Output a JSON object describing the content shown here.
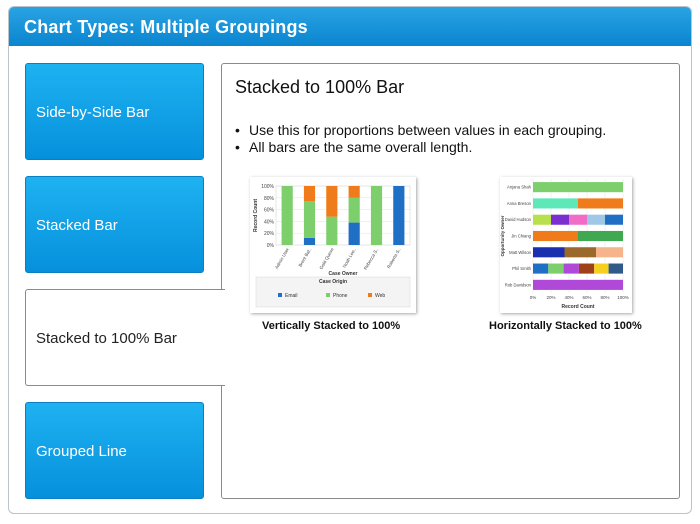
{
  "header": {
    "title": "Chart Types: Multiple Groupings"
  },
  "tabs": [
    {
      "label": "Side-by-Side Bar",
      "active": false
    },
    {
      "label": "Stacked Bar",
      "active": false
    },
    {
      "label": "Stacked to 100% Bar",
      "active": true
    },
    {
      "label": "Grouped Line",
      "active": false
    }
  ],
  "content": {
    "title": "Stacked to 100% Bar",
    "bullets": [
      "Use this for proportions between values in each grouping.",
      "All bars are the same overall length."
    ]
  },
  "charts": {
    "vertical_caption": "Vertically Stacked to 100%",
    "horizontal_caption": "Horizontally Stacked to 100%"
  },
  "colors": {
    "header": "#1a9ae0",
    "tab": "#0e9be6",
    "email": "#1f6fc5",
    "phone": "#7ccf6a",
    "web": "#ef7b1a"
  },
  "chart_data": [
    {
      "type": "bar",
      "orientation": "vertical",
      "stacked_percent": true,
      "xlabel": "Case Owner",
      "ylabel": "Record Count",
      "yticks": [
        "0%",
        "20%",
        "40%",
        "60%",
        "80%",
        "100%"
      ],
      "categories": [
        "Admin User",
        "Brent Bal..",
        "Gold Queve",
        "Noah Lee..",
        "Rebecca S..",
        "Roberta S.."
      ],
      "legend_title": "Case Origin",
      "series": [
        {
          "name": "Email",
          "color": "#1f6fc5",
          "values": [
            0,
            12,
            0,
            38,
            0,
            100
          ]
        },
        {
          "name": "Phone",
          "color": "#7ccf6a",
          "values": [
            100,
            62,
            48,
            42,
            100,
            0
          ]
        },
        {
          "name": "Web",
          "color": "#ef7b1a",
          "values": [
            0,
            26,
            52,
            20,
            0,
            0
          ]
        }
      ]
    },
    {
      "type": "bar",
      "orientation": "horizontal",
      "stacked_percent": true,
      "xlabel": "Record Count",
      "ylabel": "Opportunity Owner",
      "xticks": [
        "0%",
        "20%",
        "40%",
        "60%",
        "80%",
        "100%"
      ],
      "categories": [
        "Anjana Shah",
        "Anna Breson",
        "David Hudson",
        "Jin Chiang",
        "Matt Wilson",
        "Phil Smith",
        "Rob Davidson"
      ],
      "rows": [
        {
          "segments": [
            100
          ],
          "colors": [
            "#7ccf6a"
          ]
        },
        {
          "segments": [
            50,
            50
          ],
          "colors": [
            "#5de8b8",
            "#ef7b1a"
          ]
        },
        {
          "segments": [
            20,
            20,
            20,
            20,
            20
          ],
          "colors": [
            "#b8e04c",
            "#7b2fd0",
            "#f06cc6",
            "#9ec8e6",
            "#1f6fc5"
          ]
        },
        {
          "segments": [
            50,
            50
          ],
          "colors": [
            "#ef7b1a",
            "#3fa850"
          ]
        },
        {
          "segments": [
            35,
            35,
            30
          ],
          "colors": [
            "#1a2fb0",
            "#9b6a2a",
            "#f5b48a"
          ]
        },
        {
          "segments": [
            17,
            17,
            17,
            17,
            16,
            16
          ],
          "colors": [
            "#1f6fc5",
            "#7ccf6a",
            "#b048d8",
            "#a0401a",
            "#f5d020",
            "#2f5a8a"
          ]
        },
        {
          "segments": [
            100
          ],
          "colors": [
            "#b048d8"
          ]
        }
      ]
    }
  ]
}
